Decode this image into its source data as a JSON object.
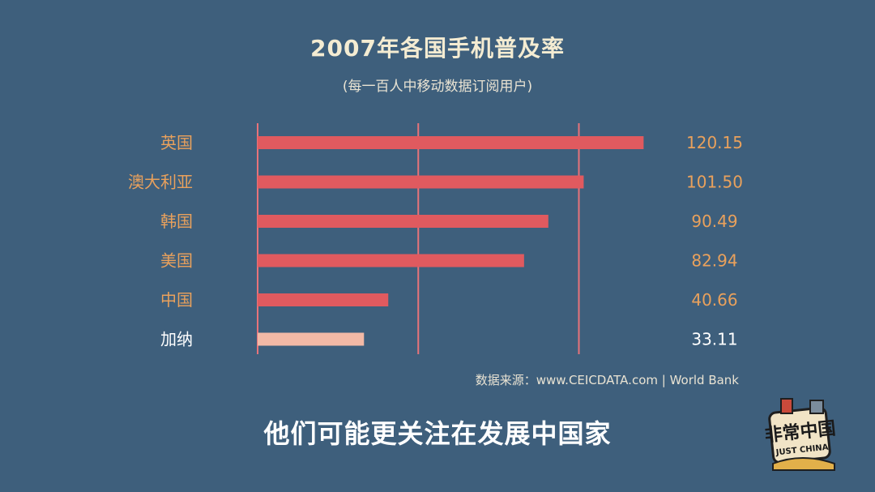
{
  "header": {
    "title": "2007年各国手机普及率",
    "subtitle": "(每一百人中移动数据订阅用户)"
  },
  "chart_data": {
    "type": "bar",
    "orientation": "horizontal",
    "title": "2007年各国手机普及率",
    "subtitle": "(每一百人中移动数据订阅用户)",
    "categories": [
      "英国",
      "澳大利亚",
      "韩国",
      "美国",
      "中国",
      "加纳"
    ],
    "values": [
      120.15,
      101.5,
      90.49,
      82.94,
      40.66,
      33.11
    ],
    "value_labels": [
      "120.15",
      "101.50",
      "90.49",
      "82.94",
      "40.66",
      "33.11"
    ],
    "xlim": [
      0,
      120
    ],
    "gridlines": [
      0,
      50,
      100
    ],
    "grid": true,
    "colors": {
      "bar": "#e05a5f",
      "highlight_bar": "#f2b9a6",
      "label": "#e9a15c",
      "highlight_label": "#ffffff",
      "gridline": "#e7737a"
    },
    "highlight_category": "加纳"
  },
  "footer": {
    "source": "数据来源：www.CEICDATA.com | World Bank",
    "caption": "他们可能更关注在发展中国家"
  },
  "logo": {
    "icon": "just-china-logo",
    "text": "非常中国",
    "subtext": "JUST CHINA"
  }
}
